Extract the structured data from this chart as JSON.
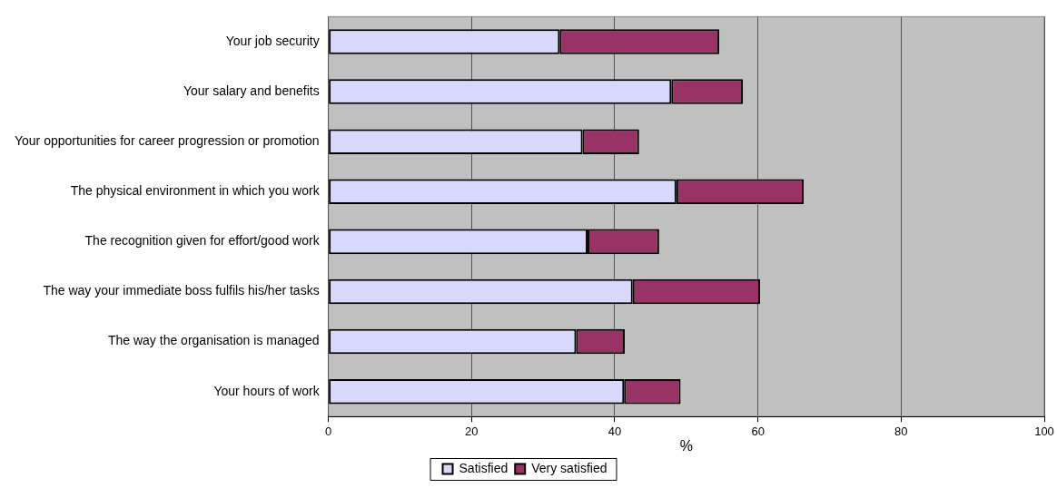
{
  "chart_data": {
    "type": "bar",
    "orientation": "horizontal",
    "stacked": true,
    "xlabel": "%",
    "categories": [
      "Your job security",
      "Your salary and benefits",
      "Your opportunities for career progression or promotion",
      "The physical environment in which you work",
      "The recognition given for effort/good work",
      "The way your immediate boss fulfils his/her tasks",
      "The way the organisation is managed",
      "Your hours of work"
    ],
    "series": [
      {
        "name": "Satisfied",
        "color": "#d8d8fc",
        "values": [
          32.3,
          47.9,
          35.5,
          48.6,
          36.2,
          42.5,
          34.6,
          41.3
        ]
      },
      {
        "name": "Very satisfied",
        "color": "#993366",
        "values": [
          22.3,
          10.0,
          7.9,
          17.8,
          10.0,
          17.8,
          6.8,
          7.9
        ]
      }
    ],
    "xlim": [
      0,
      100
    ],
    "xticks": [
      0,
      20,
      40,
      60,
      80,
      100
    ],
    "grid": "x",
    "legend": "bottom"
  }
}
